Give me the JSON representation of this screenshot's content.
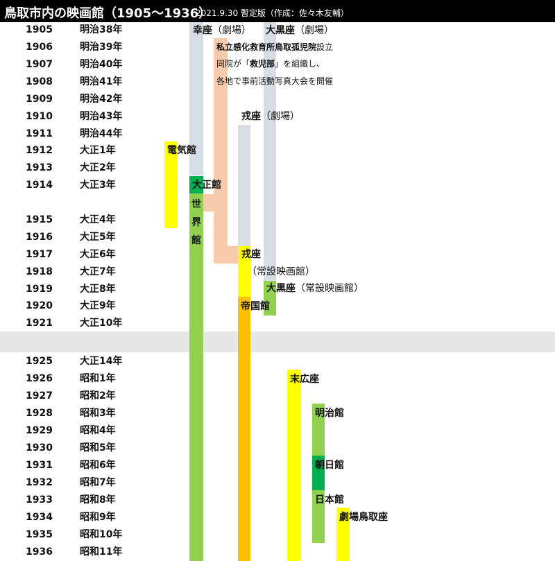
{
  "title": "鳥取市内の映画館（1905〜1936）",
  "subtitle": "2021.9.30 暫定版（作成：佐々木友輔）",
  "colors": {
    "header_bg": "#000000",
    "gap_band": "#e7e7e7",
    "theater_gray": "#d6dde5",
    "orphanage_peach": "#f8cbad",
    "yellow": "#ffff00",
    "green": "#92d050",
    "dark_green": "#00b050",
    "orange": "#ffc000"
  },
  "timeline": [
    {
      "year": "1905",
      "era": "明治38年"
    },
    {
      "year": "1906",
      "era": "明治39年"
    },
    {
      "year": "1907",
      "era": "明治40年"
    },
    {
      "year": "1908",
      "era": "明治41年"
    },
    {
      "year": "1909",
      "era": "明治42年"
    },
    {
      "year": "1910",
      "era": "明治43年"
    },
    {
      "year": "1911",
      "era": "明治44年"
    },
    {
      "year": "1912",
      "era": "大正1年"
    },
    {
      "year": "1913",
      "era": "大正2年"
    },
    {
      "year": "1914",
      "era": "大正3年"
    },
    {
      "year": "1915",
      "era": "大正4年"
    },
    {
      "year": "1916",
      "era": "大正5年"
    },
    {
      "year": "1917",
      "era": "大正6年"
    },
    {
      "year": "1918",
      "era": "大正7年"
    },
    {
      "year": "1919",
      "era": "大正8年"
    },
    {
      "year": "1920",
      "era": "大正9年"
    },
    {
      "year": "1921",
      "era": "大正10年"
    },
    {
      "year": "1925",
      "era": "大正14年"
    },
    {
      "year": "1926",
      "era": "昭和1年"
    },
    {
      "year": "1927",
      "era": "昭和2年"
    },
    {
      "year": "1928",
      "era": "昭和3年"
    },
    {
      "year": "1929",
      "era": "昭和4年"
    },
    {
      "year": "1930",
      "era": "昭和5年"
    },
    {
      "year": "1931",
      "era": "昭和6年"
    },
    {
      "year": "1932",
      "era": "昭和7年"
    },
    {
      "year": "1933",
      "era": "昭和8年"
    },
    {
      "year": "1934",
      "era": "昭和9年"
    },
    {
      "year": "1935",
      "era": "昭和10年"
    },
    {
      "year": "1936",
      "era": "昭和11年"
    }
  ],
  "labels": {
    "saiza_name": "幸座",
    "saiza_kind": "（劇場）",
    "daikokuza_name": "大黒座",
    "daikokuza_kind": "（劇場）",
    "note_line1_bold": "私立感化救育所鳥取孤児院",
    "note_line1_rest": "設立",
    "note_line2_pre": "同院が「",
    "note_line2_bold": "救児部",
    "note_line2_post": "」を組織し、",
    "note_line3": "各地で事前活動写真大会を開催",
    "jujiza_name": "戎座",
    "jujiza_kind": "（劇場）",
    "denkikan": "電気館",
    "taishokan": "大正館",
    "sekaikan": "世界館",
    "jujiza2": "戎座",
    "jujiza2_kind": "（常設映画館）",
    "daikokuza2_name": "大黒座",
    "daikokuza2_kind": "（常設映画館）",
    "teikokukan": "帝国館",
    "suehiroza": "末広座",
    "meijikan": "明治館",
    "asahikan": "朝日館",
    "nipponkan": "日本館",
    "gekijo_tottoriza": "劇場鳥取座"
  }
}
